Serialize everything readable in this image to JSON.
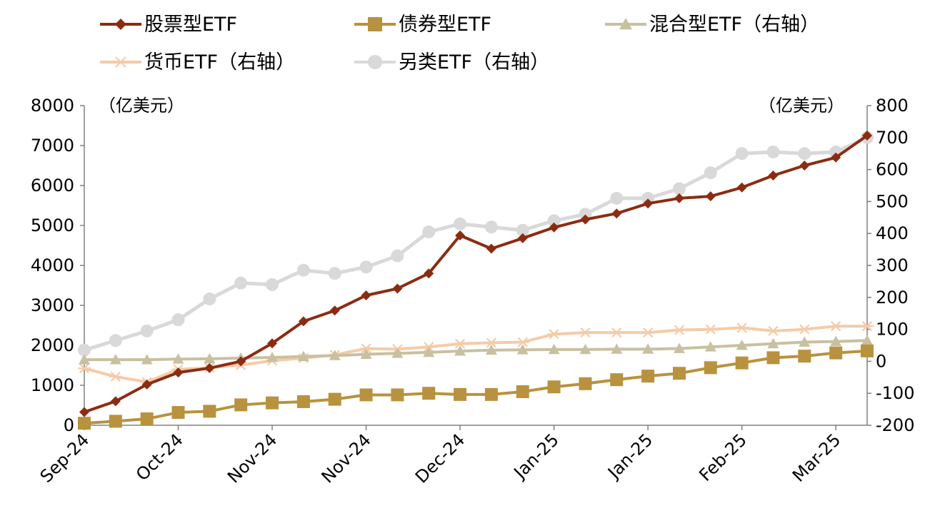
{
  "chart_data": {
    "type": "line",
    "left_unit": "（亿美元）",
    "right_unit": "（亿美元）",
    "x_tick_labels": [
      "Sep-24",
      "Oct-24",
      "Nov-24",
      "Nov-24",
      "Dec-24",
      "Jan-25",
      "Jan-25",
      "Feb-25",
      "Mar-25"
    ],
    "x_tick_positions": [
      0,
      3,
      6,
      9,
      12,
      15,
      18,
      21,
      24
    ],
    "n_points": 26,
    "y_left": {
      "min": 0,
      "max": 8000,
      "ticks": [
        "0",
        "1000",
        "2000",
        "3000",
        "4000",
        "5000",
        "6000",
        "7000",
        "8000"
      ]
    },
    "y_right": {
      "min": -200,
      "max": 800,
      "ticks": [
        "-200",
        "-100",
        "0",
        "100",
        "200",
        "300",
        "400",
        "500",
        "600",
        "700",
        "800"
      ]
    },
    "series": [
      {
        "name": "股票型ETF",
        "axis": "left",
        "color": "#8b2c12",
        "marker": "diamond",
        "values": [
          330,
          600,
          1020,
          1320,
          1430,
          1600,
          2050,
          2600,
          2870,
          3250,
          3420,
          3800,
          4750,
          4420,
          4680,
          4950,
          5150,
          5300,
          5550,
          5680,
          5730,
          5950,
          6250,
          6500,
          6700,
          7250
        ]
      },
      {
        "name": "债券型ETF",
        "axis": "left",
        "color": "#b8923e",
        "marker": "square",
        "values": [
          50,
          100,
          160,
          320,
          350,
          510,
          560,
          590,
          650,
          760,
          760,
          800,
          770,
          770,
          840,
          960,
          1040,
          1140,
          1230,
          1300,
          1440,
          1560,
          1690,
          1730,
          1810,
          1860
        ]
      },
      {
        "name": "混合型ETF（右轴）",
        "axis": "right",
        "color": "#c8c0a0",
        "marker": "triangle",
        "values": [
          5,
          5,
          5,
          7,
          8,
          10,
          12,
          15,
          18,
          22,
          25,
          28,
          32,
          35,
          36,
          37,
          37,
          38,
          38,
          40,
          45,
          50,
          55,
          60,
          62,
          65
        ]
      },
      {
        "name": "货币ETF（右轴）",
        "axis": "right",
        "color": "#f5cba8",
        "marker": "star",
        "values": [
          -22,
          -48,
          -65,
          -25,
          -20,
          -12,
          2,
          10,
          20,
          40,
          38,
          45,
          55,
          58,
          60,
          85,
          90,
          90,
          90,
          98,
          100,
          105,
          95,
          100,
          110,
          110
        ]
      },
      {
        "name": "另类ETF（右轴）",
        "axis": "right",
        "color": "#d9d9d9",
        "marker": "circle",
        "values": [
          35,
          65,
          95,
          130,
          195,
          245,
          240,
          285,
          275,
          295,
          330,
          405,
          430,
          420,
          410,
          440,
          460,
          510,
          510,
          540,
          590,
          650,
          655,
          650,
          655,
          700
        ]
      }
    ]
  }
}
